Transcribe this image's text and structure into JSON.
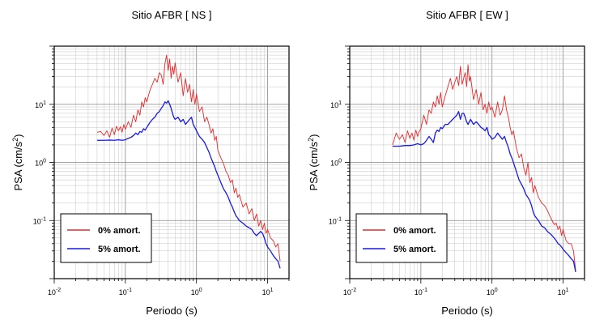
{
  "chart_data": [
    {
      "type": "line",
      "title": "Sitio AFBR [ NS ]",
      "xlabel": "Periodo (s)",
      "ylabel_main": "PSA (cm/s",
      "ylabel_sup": "2",
      "ylabel_close": ")",
      "xscale": "log",
      "yscale": "log",
      "xlim": [
        0.01,
        20
      ],
      "ylim": [
        0.01,
        100
      ],
      "x_tick_base": "10",
      "x_tick_exponents": [
        "-2",
        "-1",
        "0",
        "1"
      ],
      "y_tick_base": "10",
      "y_tick_exponents": [
        "-1",
        "0",
        "1"
      ],
      "grid": true,
      "legend_position": "bottom-left",
      "series": [
        {
          "name": "0% amort.",
          "color": "#e8282a",
          "x": [
            0.04,
            0.045,
            0.05,
            0.055,
            0.06,
            0.065,
            0.07,
            0.075,
            0.08,
            0.085,
            0.09,
            0.095,
            0.1,
            0.11,
            0.12,
            0.13,
            0.14,
            0.15,
            0.16,
            0.17,
            0.18,
            0.19,
            0.2,
            0.22,
            0.24,
            0.26,
            0.28,
            0.3,
            0.32,
            0.34,
            0.36,
            0.38,
            0.4,
            0.42,
            0.44,
            0.46,
            0.48,
            0.5,
            0.55,
            0.6,
            0.65,
            0.7,
            0.75,
            0.8,
            0.85,
            0.9,
            0.95,
            1.0,
            1.1,
            1.2,
            1.3,
            1.4,
            1.5,
            1.6,
            1.7,
            1.8,
            1.9,
            2.0,
            2.2,
            2.4,
            2.6,
            2.8,
            3.0,
            3.2,
            3.4,
            3.6,
            3.8,
            4.0,
            4.5,
            5.0,
            5.5,
            6.0,
            6.5,
            7.0,
            7.5,
            8.0,
            8.5,
            9.0,
            9.5,
            10,
            11,
            12,
            13,
            14,
            15
          ],
          "y": [
            3.3,
            3.4,
            2.9,
            3.5,
            2.7,
            3.9,
            3.0,
            4.2,
            3.5,
            4.1,
            3.3,
            4.5,
            3.7,
            5.0,
            4.0,
            6.5,
            5.0,
            8.0,
            6.5,
            11,
            9.0,
            13,
            11,
            17,
            22,
            28,
            24,
            35,
            32,
            22,
            50,
            70,
            38,
            60,
            28,
            45,
            33,
            52,
            24,
            35,
            14,
            28,
            16,
            22,
            11,
            18,
            10,
            15,
            7.5,
            9.0,
            5.0,
            6.0,
            4.5,
            3.2,
            3.8,
            2.4,
            2.8,
            1.6,
            1.2,
            0.95,
            0.7,
            0.6,
            0.45,
            0.5,
            0.3,
            0.36,
            0.25,
            0.28,
            0.17,
            0.2,
            0.13,
            0.16,
            0.1,
            0.13,
            0.08,
            0.1,
            0.07,
            0.09,
            0.06,
            0.07,
            0.05,
            0.045,
            0.035,
            0.04,
            0.02
          ]
        },
        {
          "name": "5% amort.",
          "color": "#1a1ae6",
          "x": [
            0.04,
            0.05,
            0.06,
            0.07,
            0.08,
            0.09,
            0.1,
            0.11,
            0.12,
            0.13,
            0.14,
            0.15,
            0.16,
            0.17,
            0.18,
            0.19,
            0.2,
            0.22,
            0.24,
            0.26,
            0.28,
            0.3,
            0.32,
            0.34,
            0.36,
            0.38,
            0.4,
            0.42,
            0.44,
            0.46,
            0.48,
            0.5,
            0.55,
            0.6,
            0.65,
            0.7,
            0.75,
            0.8,
            0.85,
            0.9,
            0.95,
            1.0,
            1.1,
            1.2,
            1.3,
            1.4,
            1.5,
            1.6,
            1.7,
            1.8,
            1.9,
            2.0,
            2.2,
            2.4,
            2.6,
            2.8,
            3.0,
            3.2,
            3.4,
            3.6,
            3.8,
            4.0,
            4.5,
            5.0,
            5.5,
            6.0,
            6.5,
            7.0,
            7.5,
            8.0,
            8.5,
            9.0,
            9.5,
            10,
            11,
            12,
            13,
            14,
            15
          ],
          "y": [
            2.4,
            2.4,
            2.42,
            2.4,
            2.45,
            2.4,
            2.45,
            2.6,
            2.7,
            2.9,
            3.2,
            3.0,
            3.4,
            3.3,
            3.8,
            3.6,
            4.0,
            4.8,
            5.5,
            6.0,
            7.0,
            7.5,
            8.5,
            9.5,
            11,
            10.5,
            11.5,
            10,
            8.5,
            7.0,
            6.0,
            5.5,
            6.0,
            5.0,
            5.5,
            4.5,
            5.0,
            5.5,
            6.0,
            4.5,
            4.0,
            3.5,
            2.8,
            2.5,
            2.2,
            1.8,
            1.5,
            1.2,
            1.0,
            0.85,
            0.7,
            0.6,
            0.45,
            0.35,
            0.3,
            0.25,
            0.2,
            0.17,
            0.14,
            0.12,
            0.11,
            0.1,
            0.09,
            0.08,
            0.075,
            0.07,
            0.06,
            0.055,
            0.06,
            0.065,
            0.06,
            0.05,
            0.04,
            0.035,
            0.03,
            0.025,
            0.022,
            0.02,
            0.015
          ]
        }
      ]
    },
    {
      "type": "line",
      "title": "Sitio AFBR [ EW ]",
      "xlabel": "Periodo (s)",
      "ylabel_main": "PSA (cm/s",
      "ylabel_sup": "2",
      "ylabel_close": ")",
      "xscale": "log",
      "yscale": "log",
      "xlim": [
        0.01,
        20
      ],
      "ylim": [
        0.01,
        100
      ],
      "x_tick_base": "10",
      "x_tick_exponents": [
        "-2",
        "-1",
        "0",
        "1"
      ],
      "y_tick_base": "10",
      "y_tick_exponents": [
        "-1",
        "0",
        "1"
      ],
      "grid": true,
      "legend_position": "bottom-left",
      "series": [
        {
          "name": "0% amort.",
          "color": "#e8282a",
          "x": [
            0.04,
            0.045,
            0.05,
            0.055,
            0.06,
            0.065,
            0.07,
            0.075,
            0.08,
            0.085,
            0.09,
            0.095,
            0.1,
            0.11,
            0.12,
            0.13,
            0.14,
            0.15,
            0.16,
            0.17,
            0.18,
            0.19,
            0.2,
            0.22,
            0.24,
            0.26,
            0.28,
            0.3,
            0.32,
            0.34,
            0.36,
            0.38,
            0.4,
            0.42,
            0.44,
            0.46,
            0.48,
            0.5,
            0.55,
            0.6,
            0.65,
            0.7,
            0.75,
            0.8,
            0.85,
            0.9,
            0.95,
            1.0,
            1.1,
            1.2,
            1.3,
            1.4,
            1.5,
            1.6,
            1.7,
            1.8,
            1.9,
            2.0,
            2.2,
            2.4,
            2.6,
            2.8,
            3.0,
            3.2,
            3.4,
            3.6,
            3.8,
            4.0,
            4.5,
            5.0,
            5.5,
            6.0,
            6.5,
            7.0,
            7.5,
            8.0,
            8.5,
            9.0,
            9.5,
            10,
            11,
            12,
            13,
            14,
            15
          ],
          "y": [
            2.0,
            3.2,
            2.5,
            3.0,
            2.2,
            3.5,
            2.6,
            3.2,
            2.4,
            3.6,
            2.8,
            3.4,
            3.8,
            6.5,
            4.5,
            8.0,
            7.0,
            11,
            9.0,
            14,
            10,
            16,
            9.0,
            14,
            20,
            28,
            18,
            24,
            30,
            21,
            45,
            22,
            28,
            35,
            20,
            48,
            25,
            30,
            12,
            18,
            10,
            16,
            8.0,
            10,
            7.0,
            11,
            8.0,
            9.0,
            6.0,
            11,
            6.5,
            8.0,
            14,
            8.0,
            6.0,
            4.0,
            3.0,
            3.5,
            1.8,
            1.2,
            1.4,
            0.8,
            0.6,
            1.0,
            0.45,
            0.55,
            0.3,
            0.4,
            0.25,
            0.2,
            0.18,
            0.15,
            0.12,
            0.1,
            0.085,
            0.09,
            0.07,
            0.08,
            0.055,
            0.07,
            0.045,
            0.04,
            0.04,
            0.03,
            0.014
          ]
        },
        {
          "name": "5% amort.",
          "color": "#1a1ae6",
          "x": [
            0.04,
            0.05,
            0.06,
            0.07,
            0.08,
            0.09,
            0.1,
            0.11,
            0.12,
            0.13,
            0.14,
            0.15,
            0.16,
            0.17,
            0.18,
            0.19,
            0.2,
            0.22,
            0.24,
            0.26,
            0.28,
            0.3,
            0.32,
            0.34,
            0.36,
            0.38,
            0.4,
            0.42,
            0.44,
            0.46,
            0.48,
            0.5,
            0.55,
            0.6,
            0.65,
            0.7,
            0.75,
            0.8,
            0.85,
            0.9,
            0.95,
            1.0,
            1.1,
            1.2,
            1.3,
            1.4,
            1.5,
            1.6,
            1.7,
            1.8,
            1.9,
            2.0,
            2.2,
            2.4,
            2.6,
            2.8,
            3.0,
            3.2,
            3.4,
            3.6,
            3.8,
            4.0,
            4.5,
            5.0,
            5.5,
            6.0,
            6.5,
            7.0,
            7.5,
            8.0,
            8.5,
            9.0,
            9.5,
            10,
            11,
            12,
            13,
            14,
            15
          ],
          "y": [
            1.9,
            1.9,
            1.95,
            1.95,
            2.0,
            2.1,
            2.0,
            2.1,
            2.4,
            2.8,
            2.5,
            2.2,
            3.2,
            3.6,
            3.4,
            4.0,
            3.8,
            4.5,
            4.5,
            5.0,
            5.5,
            6.0,
            6.5,
            7.5,
            5.5,
            7.0,
            7.0,
            6.0,
            5.0,
            4.5,
            5.0,
            5.5,
            4.5,
            5.0,
            4.5,
            4.0,
            3.8,
            3.5,
            4.0,
            3.0,
            2.8,
            2.5,
            2.7,
            3.2,
            2.8,
            2.5,
            2.8,
            2.2,
            1.8,
            1.4,
            1.2,
            1.0,
            0.7,
            0.5,
            0.42,
            0.35,
            0.28,
            0.25,
            0.22,
            0.18,
            0.14,
            0.12,
            0.1,
            0.08,
            0.075,
            0.065,
            0.06,
            0.055,
            0.05,
            0.045,
            0.04,
            0.038,
            0.035,
            0.032,
            0.028,
            0.025,
            0.022,
            0.02,
            0.013
          ]
        }
      ]
    }
  ]
}
